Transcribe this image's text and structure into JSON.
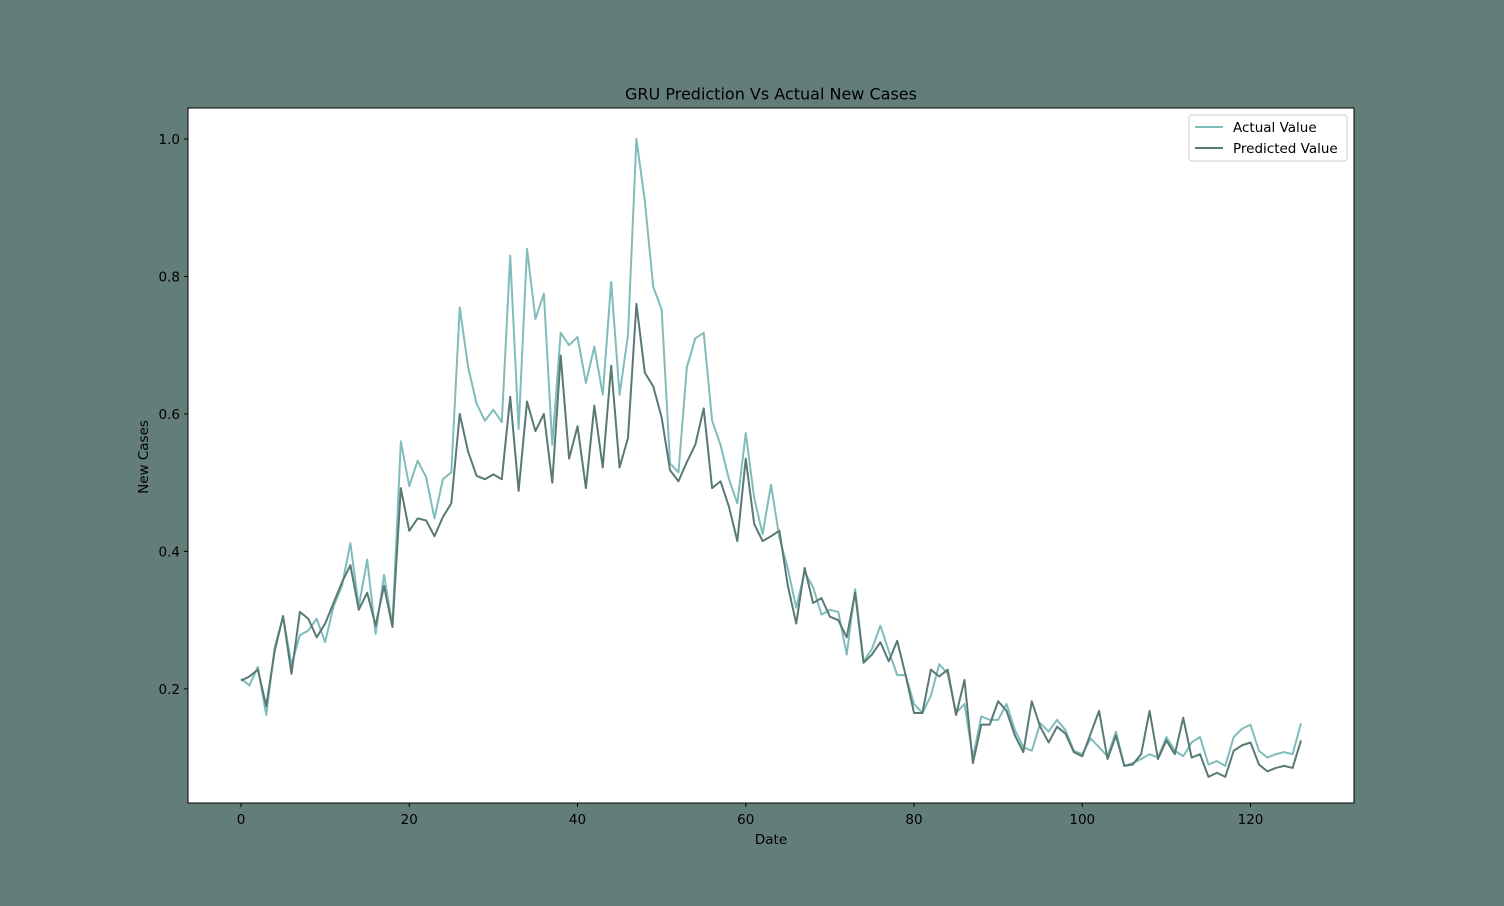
{
  "colors": {
    "figure_bg": "#637d78",
    "plot_bg": "#ffffff",
    "actual": "#7fbcbc",
    "predicted": "#587a73",
    "axis": "#000000"
  },
  "chart_data": {
    "type": "line",
    "title": "GRU Prediction Vs Actual New Cases",
    "xlabel": "Date",
    "ylabel": "New Cases",
    "xlim": [
      -6.3,
      132.3
    ],
    "ylim": [
      0.034,
      1.045
    ],
    "xticks": [
      0,
      20,
      40,
      60,
      80,
      100,
      120
    ],
    "xtick_labels": [
      "0",
      "20",
      "40",
      "60",
      "80",
      "100",
      "120"
    ],
    "yticks": [
      0.2,
      0.4,
      0.6,
      0.8,
      1.0
    ],
    "ytick_labels": [
      "0.2",
      "0.4",
      "0.6",
      "0.8",
      "1.0"
    ],
    "grid": false,
    "legend_position": "top-right",
    "series": [
      {
        "name": "Actual Value",
        "color": "#7fbcbc",
        "values": [
          0.215,
          0.205,
          0.232,
          0.162,
          0.26,
          0.305,
          0.235,
          0.278,
          0.285,
          0.302,
          0.268,
          0.32,
          0.35,
          0.412,
          0.32,
          0.388,
          0.28,
          0.366,
          0.292,
          0.56,
          0.495,
          0.532,
          0.508,
          0.448,
          0.505,
          0.515,
          0.755,
          0.668,
          0.615,
          0.59,
          0.606,
          0.588,
          0.83,
          0.578,
          0.84,
          0.738,
          0.775,
          0.555,
          0.718,
          0.7,
          0.712,
          0.645,
          0.698,
          0.628,
          0.792,
          0.628,
          0.715,
          1.0,
          0.91,
          0.785,
          0.752,
          0.528,
          0.515,
          0.668,
          0.71,
          0.718,
          0.59,
          0.555,
          0.505,
          0.47,
          0.572,
          0.478,
          0.425,
          0.497,
          0.42,
          0.375,
          0.318,
          0.37,
          0.348,
          0.308,
          0.315,
          0.312,
          0.25,
          0.345,
          0.24,
          0.258,
          0.292,
          0.255,
          0.22,
          0.22,
          0.178,
          0.165,
          0.19,
          0.236,
          0.222,
          0.165,
          0.178,
          0.1,
          0.16,
          0.155,
          0.155,
          0.178,
          0.14,
          0.115,
          0.11,
          0.15,
          0.138,
          0.155,
          0.14,
          0.11,
          0.105,
          0.128,
          0.115,
          0.102,
          0.138,
          0.088,
          0.092,
          0.098,
          0.105,
          0.1,
          0.13,
          0.11,
          0.102,
          0.122,
          0.13,
          0.09,
          0.095,
          0.088,
          0.13,
          0.142,
          0.148,
          0.11,
          0.1,
          0.105,
          0.108,
          0.105,
          0.15
        ]
      },
      {
        "name": "Predicted Value",
        "color": "#587a73",
        "values": [
          0.212,
          0.218,
          0.228,
          0.175,
          0.255,
          0.306,
          0.222,
          0.312,
          0.302,
          0.275,
          0.295,
          0.325,
          0.355,
          0.38,
          0.315,
          0.34,
          0.292,
          0.35,
          0.29,
          0.492,
          0.43,
          0.448,
          0.445,
          0.422,
          0.45,
          0.47,
          0.6,
          0.545,
          0.51,
          0.505,
          0.512,
          0.505,
          0.625,
          0.488,
          0.618,
          0.575,
          0.6,
          0.5,
          0.685,
          0.535,
          0.582,
          0.492,
          0.612,
          0.522,
          0.67,
          0.522,
          0.565,
          0.76,
          0.66,
          0.64,
          0.595,
          0.518,
          0.502,
          0.53,
          0.555,
          0.608,
          0.492,
          0.502,
          0.465,
          0.415,
          0.535,
          0.44,
          0.415,
          0.422,
          0.43,
          0.35,
          0.295,
          0.376,
          0.325,
          0.332,
          0.305,
          0.3,
          0.275,
          0.34,
          0.238,
          0.25,
          0.268,
          0.24,
          0.27,
          0.22,
          0.165,
          0.165,
          0.228,
          0.218,
          0.228,
          0.162,
          0.213,
          0.092,
          0.148,
          0.148,
          0.182,
          0.168,
          0.132,
          0.108,
          0.182,
          0.145,
          0.122,
          0.145,
          0.135,
          0.108,
          0.102,
          0.135,
          0.168,
          0.098,
          0.132,
          0.088,
          0.09,
          0.105,
          0.168,
          0.098,
          0.125,
          0.105,
          0.158,
          0.1,
          0.105,
          0.072,
          0.078,
          0.072,
          0.11,
          0.118,
          0.122,
          0.09,
          0.08,
          0.085,
          0.088,
          0.085,
          0.125
        ]
      }
    ]
  }
}
